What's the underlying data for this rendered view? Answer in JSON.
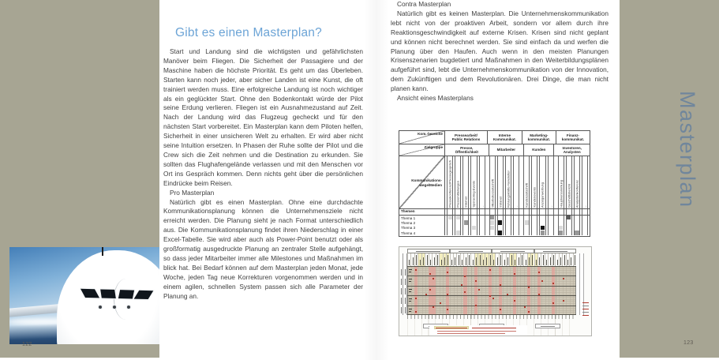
{
  "colors": {
    "cover_olive": "#a7a593",
    "heading_blue": "#6ca4d6",
    "chapter_title_blue": "#70869c",
    "body_text": "#3e3e3e"
  },
  "sidebar": {
    "title": "Masterplan"
  },
  "page_left": {
    "page_number": "122",
    "heading": "Gibt es einen Masterplan?",
    "para1": "Start und Landung sind die wichtigsten und gefährlichsten Manöver beim Fliegen. Die Sicherheit der Passagiere und der Maschine haben die höchste Priorität. Es geht um das Überleben. Starten kann noch jeder, aber sicher Landen ist eine Kunst, die oft trainiert werden muss. Eine erfolgreiche Landung ist noch wichtiger als ein geglückter Start. Ohne den Bodenkontakt würde der Pilot seine Erdung verlieren. Fliegen ist ein Ausnahmezustand auf Zeit. Nach der Landung wird das Flugzeug gecheckt und für den nächsten Start vorbereitet. Ein Masterplan kann dem Piloten helfen, Sicherheit in einer unsicheren Welt zu erhalten. Er wird aber nicht seine Intuition ersetzen. In Phasen der Ruhe sollte der Pilot und die Crew sich die Zeit nehmen und die Destination zu erkunden. Sie sollten das Flughafengelände verlassen und mit den Menschen vor Ort ins Gespräch kommen. Denn nichts geht über die persönlichen Eindrücke beim Reisen.",
    "subhead_pro": "Pro Masterplan",
    "para2": "Natürlich gibt es einen Masterplan. Ohne eine durchdachte Kommunikationsplanung können die Unternehmensziele nicht erreicht werden. Die Planung sieht je nach Format unterschiedlich aus. Die Kommunikationsplanung findet ihren Niederschlag in einer Excel-Tabelle. Sie wird aber auch als Power-Point benutzt oder als großformatig ausgedruckte Planung an zentraler Stelle aufgehängt, so dass jeder Mitarbeiter immer alle Milestones und Maßnahmen im blick hat. Bei Bedarf können auf dem Masterplan jeden Monat, jede Woche, jeden Tag neue Korrekturen vorgenommen werden und in einem agilen, schnellen System passen sich alle Parameter der Planung an."
  },
  "page_right": {
    "page_number": "123",
    "subhead_contra": "Contra Masterplan",
    "para1": "Natürlich gibt es keinen Masterplan. Die Unternehmenskommunikation lebt nicht von der proaktiven Arbeit, sondern vor allem durch ihre Reaktionsgeschwindigkeit auf externe Krisen. Krisen sind nicht geplant und können nicht berechnet werden. Sie sind einfach da und werfen die Planung über den Haufen. Auch wenn in den meisten Planungen Krisenszenarien bugdetiert und Maßnahmen in den Weiterbildungsplänen aufgeführt sind, lebt die Unternehmenskommunikation von der Innovation, dem Zukünftigen und dem Revolutionären. Drei Dinge, die man nicht planen kann.",
    "figure_caption": "Ansicht eines Masterplans"
  },
  "matrix_table": {
    "corner_top": "Kom.-bereiche",
    "corner_mid": "Zielgruppe",
    "row_axis_label": "Kommunikations-\nwege/Medien",
    "themes_label": "Themen",
    "groups": [
      {
        "area": "Pressearbeit/\nPublic Relations",
        "target": "Presse,\nÖffentlichkeit",
        "media": [
          "Pressekonferenz/Pressegespräch",
          "Pressemitteilungen",
          "Internet",
          "Sponsoring-Events",
          "..."
        ]
      },
      {
        "area": "Interne\nKommunikat.",
        "target": "Mitarbeiter",
        "media": [
          "Mitarbeiterzeitschrift",
          "Intranet",
          "Führungskräfte-Newsletter",
          "..."
        ]
      },
      {
        "area": "Marketing-\nkommunikat.",
        "target": "Kunden",
        "media": [
          "Kundenzeitschrift",
          "Kundenevents",
          "Anzeigenwerbung",
          "..."
        ]
      },
      {
        "area": "Finanz-\nkommunikat.",
        "target": "Investoren,\nAnalysten",
        "media": [
          "Hauptversammlung",
          "Geschäftsbericht",
          "Analystenkonferenz",
          "..."
        ]
      }
    ],
    "themes": [
      "Thema 1",
      "Thema 2",
      "Thema 3",
      "Thema 4"
    ],
    "matrix": [
      [
        1,
        1,
        0,
        0,
        0,
        2,
        0,
        0,
        0,
        0,
        0,
        0,
        0,
        0,
        3,
        0,
        0
      ],
      [
        0,
        0,
        2,
        0,
        0,
        1,
        4,
        0,
        0,
        1,
        0,
        0,
        0,
        0,
        0,
        0,
        0
      ],
      [
        0,
        0,
        0,
        1,
        0,
        1,
        0,
        0,
        0,
        0,
        0,
        4,
        0,
        1,
        0,
        0,
        0
      ],
      [
        0,
        1,
        0,
        0,
        0,
        0,
        4,
        0,
        0,
        0,
        0,
        2,
        0,
        2,
        0,
        2,
        0
      ]
    ],
    "shade_colors": {
      "1": "#d9d9d9",
      "2": "#979797",
      "3": "#5a5a5a",
      "4": "#151515"
    }
  },
  "figure_gantt": {
    "columns": 48,
    "header_groups": 4,
    "row_groups": 5,
    "yellow_columns": [
      3,
      4,
      9,
      10,
      11,
      19,
      20,
      21,
      22,
      23,
      24,
      29,
      30,
      34,
      35,
      36
    ],
    "pink_columns": [
      2,
      6,
      7,
      11,
      16,
      19,
      23,
      26,
      30,
      34,
      37,
      41
    ],
    "red_marks": [
      [
        2,
        1
      ],
      [
        6,
        3
      ],
      [
        11,
        2
      ],
      [
        7,
        5
      ],
      [
        16,
        4
      ],
      [
        19,
        6
      ],
      [
        23,
        1
      ],
      [
        26,
        8
      ],
      [
        30,
        3
      ],
      [
        34,
        9
      ],
      [
        37,
        2
      ],
      [
        41,
        7
      ],
      [
        6,
        10
      ],
      [
        11,
        12
      ],
      [
        2,
        14
      ],
      [
        16,
        11
      ],
      [
        23,
        13
      ],
      [
        30,
        15
      ],
      [
        37,
        12
      ],
      [
        41,
        16
      ],
      [
        7,
        18
      ],
      [
        19,
        17
      ],
      [
        26,
        19
      ],
      [
        34,
        20
      ],
      [
        11,
        19
      ],
      [
        2,
        20
      ],
      [
        44,
        5
      ],
      [
        44,
        15
      ],
      [
        20,
        10
      ],
      [
        28,
        12
      ],
      [
        15,
        8
      ],
      [
        9,
        16
      ],
      [
        33,
        18
      ],
      [
        38,
        6
      ],
      [
        24,
        14
      ],
      [
        5,
        12
      ]
    ],
    "colors": {
      "tan": "#cec7b6",
      "pink": "#dfa59b",
      "yellow": "#f3eebf",
      "red": "#b03a2e",
      "grid_line": "#b7af9f",
      "dark_line": "#55544c"
    }
  }
}
